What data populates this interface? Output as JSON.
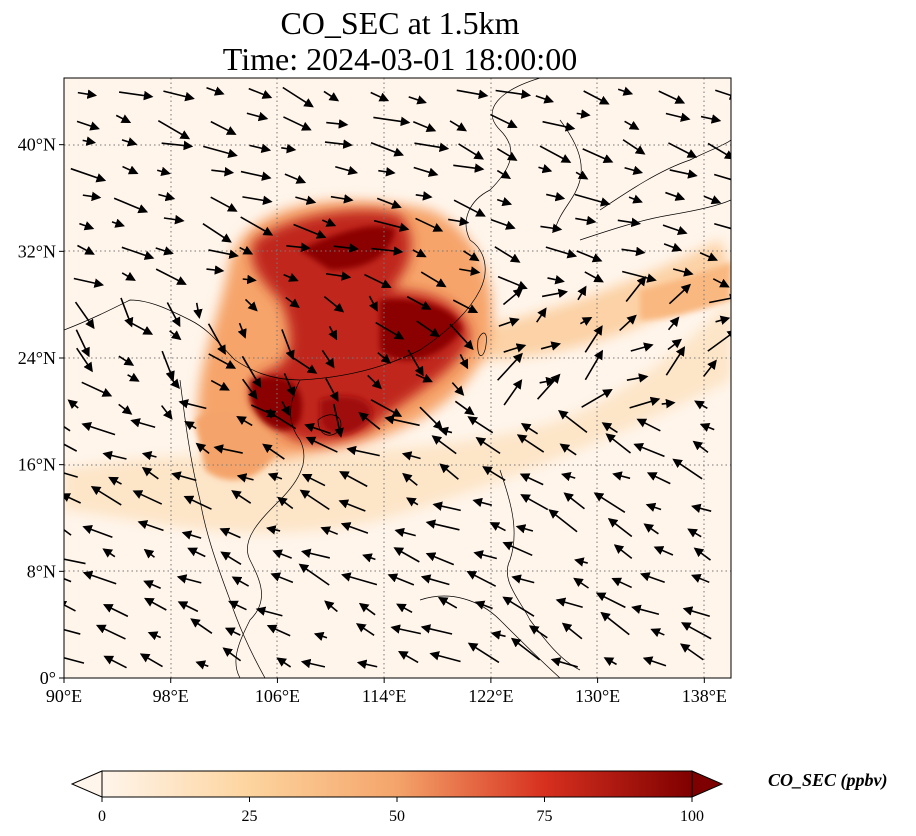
{
  "title": "CO_SEC at 1.5km",
  "subtitle": "Time: 2024-03-01 18:00:00",
  "map": {
    "lon_range": [
      90,
      140
    ],
    "lat_range": [
      0,
      45
    ],
    "x_ticks": [
      "90°E",
      "98°E",
      "106°E",
      "114°E",
      "122°E",
      "130°E",
      "138°E"
    ],
    "x_tick_values": [
      90,
      98,
      106,
      114,
      122,
      130,
      138
    ],
    "y_ticks": [
      "0°",
      "8°N",
      "16°N",
      "24°N",
      "32°N",
      "40°N"
    ],
    "y_tick_values": [
      0,
      8,
      16,
      24,
      32,
      40
    ],
    "gridlines": true,
    "vectors": "wind-vector-field",
    "colors": {
      "low": "#fff5eb",
      "mid": "#f4a460",
      "high": "#7f0000"
    }
  },
  "colorbar": {
    "label": "CO_SEC (ppbv)",
    "ticks": [
      "0",
      "25",
      "50",
      "75",
      "100"
    ],
    "tick_values": [
      0,
      25,
      50,
      75,
      100
    ],
    "range": [
      0,
      100
    ],
    "extend": "both"
  }
}
